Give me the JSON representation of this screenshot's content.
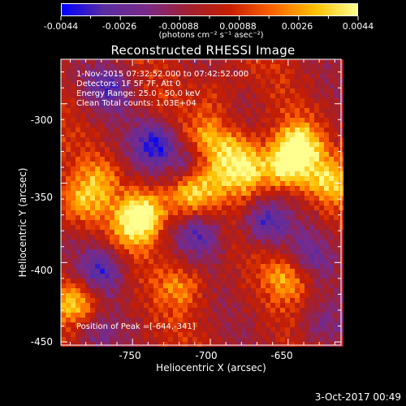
{
  "colorbar": {
    "ticks": [
      "-0.0044",
      "-0.0026",
      "-0.00088",
      "0.00088",
      "0.0026",
      "0.0044"
    ],
    "units": "(photons cm⁻² s⁻¹ asec⁻²)"
  },
  "title": "Reconstructed RHESSI Image",
  "info": {
    "line1": "1-Nov-2015 07:32:52.000 to 07:42:52.000",
    "line2": "Detectors: 1F 5F 7F, Att 0",
    "line3": "Energy Range: 25.0 - 50.0 keV",
    "line4": "Clean   Total counts: 1.03E+04"
  },
  "peak_text": "Position of Peak =[-644,-341]",
  "date": "3-Oct-2017 00:49",
  "chart_data": {
    "type": "heatmap",
    "title": "Reconstructed RHESSI Image",
    "xlabel": "Heliocentric X (arcsec)",
    "ylabel": "Heliocentric Y (arcsec)",
    "xlim": [
      -796,
      -616
    ],
    "ylim": [
      -452,
      -272
    ],
    "x_ticks": [
      -750,
      -700,
      -650
    ],
    "y_ticks": [
      -300,
      -350,
      -400,
      -450
    ],
    "colorscale_range": [
      -0.0044,
      0.0044
    ],
    "peak": [
      -644,
      -341
    ],
    "colormap": [
      "#0000ff",
      "#5a2da0",
      "#7a2a8a",
      "#a02030",
      "#c81e00",
      "#ff6400",
      "#ffc000",
      "#ffff90"
    ],
    "blobs": [
      {
        "x": -786,
        "y": -425,
        "v": 0.85
      },
      {
        "x": -784,
        "y": -363,
        "v": 0.6
      },
      {
        "x": -772,
        "y": -348,
        "v": 0.45
      },
      {
        "x": -748,
        "y": -377,
        "v": 0.8
      },
      {
        "x": -741,
        "y": -366,
        "v": 0.75
      },
      {
        "x": -714,
        "y": -358,
        "v": 0.8
      },
      {
        "x": -703,
        "y": -345,
        "v": 0.75
      },
      {
        "x": -700,
        "y": -322,
        "v": 0.6
      },
      {
        "x": -681,
        "y": -332,
        "v": 0.75
      },
      {
        "x": -676,
        "y": -346,
        "v": 0.65
      },
      {
        "x": -652,
        "y": -340,
        "v": 1.0
      },
      {
        "x": -643,
        "y": -326,
        "v": 0.85
      },
      {
        "x": -624,
        "y": -349,
        "v": 0.7
      },
      {
        "x": -693,
        "y": -295,
        "v": 0.55
      },
      {
        "x": -718,
        "y": -415,
        "v": 0.5
      },
      {
        "x": -650,
        "y": -410,
        "v": 0.55
      },
      {
        "x": -765,
        "y": -290,
        "v": -0.6
      },
      {
        "x": -735,
        "y": -325,
        "v": -0.85
      },
      {
        "x": -707,
        "y": -382,
        "v": -0.6
      },
      {
        "x": -710,
        "y": -340,
        "v": -0.85
      },
      {
        "x": -665,
        "y": -375,
        "v": -0.75
      },
      {
        "x": -687,
        "y": -295,
        "v": -0.3
      },
      {
        "x": -635,
        "y": -395,
        "v": -0.45
      },
      {
        "x": -770,
        "y": -405,
        "v": -0.7
      },
      {
        "x": -775,
        "y": -445,
        "v": -0.4
      },
      {
        "x": -630,
        "y": -440,
        "v": -0.45
      }
    ]
  }
}
